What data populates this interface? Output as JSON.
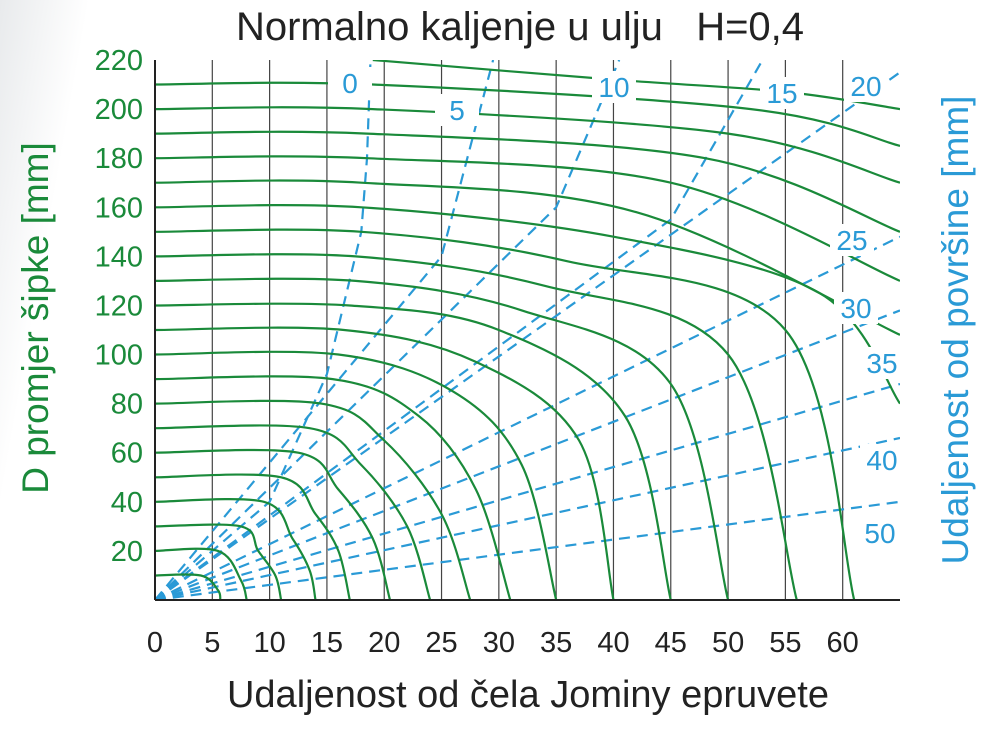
{
  "chart_data": {
    "type": "line",
    "title": "Normalno kaljenje u ulju   H=0,4",
    "xlabel": "Udaljenost od čela Jominy epruvete",
    "ylabel": "D promjer šipke [mm]",
    "ylabel_right": "Udaljenost od površine [mm]",
    "xlim": [
      0,
      65
    ],
    "ylim": [
      0,
      220
    ],
    "x_ticks": [
      "0",
      "5",
      "10",
      "15",
      "20",
      "25",
      "30",
      "35",
      "40",
      "45",
      "50",
      "55",
      "60"
    ],
    "y_ticks": [
      "20",
      "40",
      "60",
      "80",
      "100",
      "120",
      "140",
      "160",
      "180",
      "200",
      "220"
    ],
    "grid": "vertical",
    "colors": {
      "diameter": "#1a8a3a",
      "surface_distance": "#2a9ad6",
      "grid": "#444444",
      "title": "#222222"
    },
    "surface_distance_labels": [
      "0",
      "5",
      "10",
      "15",
      "20",
      "25",
      "30",
      "35",
      "40",
      "50"
    ],
    "surface_distance_series": [
      {
        "name": "0",
        "points": [
          [
            0,
            0
          ],
          [
            10,
            40
          ],
          [
            15,
            92
          ],
          [
            18,
            150
          ],
          [
            18.5,
            180
          ],
          [
            18.8,
            220
          ]
        ]
      },
      {
        "name": "5",
        "points": [
          [
            0,
            0
          ],
          [
            25,
            140
          ],
          [
            29.5,
            220
          ]
        ]
      },
      {
        "name": "10",
        "points": [
          [
            0,
            0
          ],
          [
            35,
            160
          ],
          [
            40.5,
            220
          ]
        ]
      },
      {
        "name": "15",
        "points": [
          [
            0,
            0
          ],
          [
            45,
            155
          ],
          [
            53,
            220
          ]
        ]
      },
      {
        "name": "20",
        "points": [
          [
            0,
            0
          ],
          [
            65,
            215
          ]
        ]
      },
      {
        "name": "25",
        "points": [
          [
            0,
            0
          ],
          [
            65,
            148
          ]
        ]
      },
      {
        "name": "30",
        "points": [
          [
            0,
            0
          ],
          [
            65,
            118
          ]
        ]
      },
      {
        "name": "35",
        "points": [
          [
            0,
            0
          ],
          [
            65,
            88
          ]
        ]
      },
      {
        "name": "40",
        "points": [
          [
            0,
            0
          ],
          [
            65,
            66
          ]
        ]
      },
      {
        "name": "50",
        "points": [
          [
            0,
            0
          ],
          [
            65,
            40
          ]
        ]
      }
    ],
    "diameter_series": [
      {
        "D": 10,
        "points": [
          [
            0,
            10
          ],
          [
            4,
            10
          ],
          [
            5.5,
            4
          ],
          [
            5.7,
            0
          ]
        ]
      },
      {
        "D": 20,
        "points": [
          [
            0,
            20
          ],
          [
            5.5,
            20
          ],
          [
            7.5,
            8
          ],
          [
            8,
            0
          ]
        ]
      },
      {
        "D": 30,
        "points": [
          [
            0,
            30
          ],
          [
            7.5,
            30
          ],
          [
            9,
            20
          ],
          [
            10.5,
            10
          ],
          [
            11,
            0
          ]
        ]
      },
      {
        "D": 40,
        "points": [
          [
            0,
            40
          ],
          [
            9.5,
            40
          ],
          [
            12,
            25
          ],
          [
            13.5,
            12
          ],
          [
            14,
            0
          ]
        ]
      },
      {
        "D": 50,
        "points": [
          [
            0,
            50
          ],
          [
            11,
            50
          ],
          [
            14,
            35
          ],
          [
            16,
            20
          ],
          [
            17,
            0
          ]
        ]
      },
      {
        "D": 60,
        "points": [
          [
            0,
            60
          ],
          [
            12.5,
            60
          ],
          [
            16,
            45
          ],
          [
            19,
            25
          ],
          [
            20.5,
            0
          ]
        ]
      },
      {
        "D": 70,
        "points": [
          [
            0,
            70
          ],
          [
            13.5,
            70
          ],
          [
            18,
            55
          ],
          [
            22,
            30
          ],
          [
            24,
            0
          ]
        ]
      },
      {
        "D": 80,
        "points": [
          [
            0,
            80
          ],
          [
            14.5,
            80
          ],
          [
            20,
            65
          ],
          [
            25,
            35
          ],
          [
            27.5,
            0
          ]
        ]
      },
      {
        "D": 90,
        "points": [
          [
            0,
            90
          ],
          [
            15.5,
            90
          ],
          [
            23,
            75
          ],
          [
            28,
            45
          ],
          [
            31,
            0
          ]
        ]
      },
      {
        "D": 100,
        "points": [
          [
            0,
            100
          ],
          [
            16,
            100
          ],
          [
            26,
            85
          ],
          [
            32,
            55
          ],
          [
            35,
            0
          ]
        ]
      },
      {
        "D": 110,
        "points": [
          [
            0,
            110
          ],
          [
            16.5,
            110
          ],
          [
            28,
            97
          ],
          [
            37,
            65
          ],
          [
            40,
            0
          ]
        ]
      },
      {
        "D": 120,
        "points": [
          [
            0,
            120
          ],
          [
            17,
            120
          ],
          [
            30,
            110
          ],
          [
            41,
            75
          ],
          [
            45,
            0
          ]
        ]
      },
      {
        "D": 130,
        "points": [
          [
            0,
            130
          ],
          [
            17.5,
            130
          ],
          [
            32,
            118
          ],
          [
            45,
            88
          ],
          [
            50,
            0
          ]
        ]
      },
      {
        "D": 140,
        "points": [
          [
            0,
            140
          ],
          [
            17.5,
            140
          ],
          [
            34,
            128
          ],
          [
            50,
            100
          ],
          [
            56,
            0
          ]
        ]
      },
      {
        "D": 150,
        "points": [
          [
            0,
            150
          ],
          [
            18,
            150
          ],
          [
            36,
            138
          ],
          [
            55,
            110
          ],
          [
            61,
            0
          ]
        ]
      },
      {
        "D": 160,
        "points": [
          [
            0,
            160
          ],
          [
            18,
            160
          ],
          [
            40,
            148
          ],
          [
            58,
            125
          ],
          [
            65,
            80
          ]
        ]
      },
      {
        "D": 170,
        "points": [
          [
            0,
            170
          ],
          [
            18,
            170
          ],
          [
            42,
            158
          ],
          [
            65,
            108
          ]
        ]
      },
      {
        "D": 180,
        "points": [
          [
            0,
            180
          ],
          [
            18.5,
            180
          ],
          [
            45,
            170
          ],
          [
            65,
            130
          ]
        ]
      },
      {
        "D": 190,
        "points": [
          [
            0,
            190
          ],
          [
            18.5,
            190
          ],
          [
            48,
            180
          ],
          [
            65,
            150
          ]
        ]
      },
      {
        "D": 200,
        "points": [
          [
            0,
            200
          ],
          [
            19,
            200
          ],
          [
            50,
            190
          ],
          [
            65,
            170
          ]
        ]
      },
      {
        "D": 210,
        "points": [
          [
            0,
            210
          ],
          [
            19,
            210
          ],
          [
            52,
            200
          ],
          [
            65,
            185
          ]
        ]
      },
      {
        "D": 220,
        "points": [
          [
            19,
            220
          ],
          [
            40,
            212
          ],
          [
            55,
            207
          ],
          [
            65,
            200
          ]
        ]
      }
    ]
  }
}
